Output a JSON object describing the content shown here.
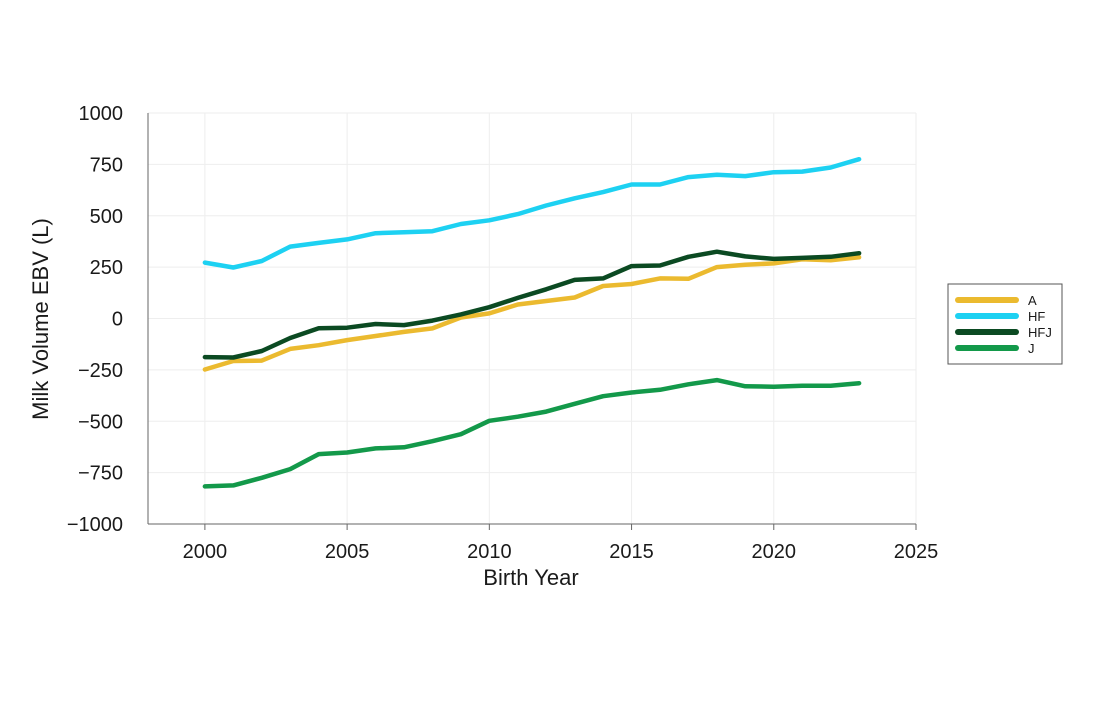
{
  "chart_data": {
    "type": "line",
    "title": "",
    "xlabel": "Birth Year",
    "ylabel": "Milk Volume EBV (L)",
    "xlim": [
      1998,
      2025
    ],
    "ylim": [
      -1000,
      1000
    ],
    "x_ticks": [
      2000,
      2005,
      2010,
      2015,
      2020,
      2025
    ],
    "x_tick_labels": [
      "2000",
      "2005",
      "2010",
      "2015",
      "2020",
      "2025"
    ],
    "y_ticks": [
      -1000,
      -750,
      -500,
      -250,
      0,
      250,
      500,
      750,
      1000
    ],
    "y_tick_labels": [
      "−1000",
      "−750",
      "−500",
      "−250",
      "0",
      "250",
      "500",
      "750",
      "1000"
    ],
    "grid": true,
    "legend_position": "right",
    "x": [
      2000,
      2001,
      2002,
      2003,
      2004,
      2005,
      2006,
      2007,
      2008,
      2009,
      2010,
      2011,
      2012,
      2013,
      2014,
      2015,
      2016,
      2017,
      2018,
      2019,
      2020,
      2021,
      2022,
      2023
    ],
    "series": [
      {
        "name": "A",
        "color": "#EBBA2F",
        "values": [
          -248,
          -207,
          -205,
          -148,
          -130,
          -105,
          -85,
          -65,
          -48,
          5,
          25,
          68,
          85,
          102,
          158,
          168,
          195,
          193,
          250,
          262,
          268,
          288,
          283,
          298
        ]
      },
      {
        "name": "HF",
        "color": "#1DD1F2",
        "values": [
          272,
          248,
          280,
          350,
          368,
          385,
          415,
          420,
          425,
          460,
          478,
          508,
          550,
          585,
          615,
          652,
          652,
          688,
          700,
          693,
          712,
          715,
          735,
          775
        ]
      },
      {
        "name": "HFJ",
        "color": "#0B4A22",
        "values": [
          -188,
          -190,
          -158,
          -95,
          -47,
          -45,
          -27,
          -32,
          -10,
          20,
          55,
          100,
          142,
          188,
          195,
          255,
          258,
          300,
          325,
          302,
          290,
          295,
          300,
          318
        ]
      },
      {
        "name": "J",
        "color": "#13994A",
        "values": [
          -817,
          -812,
          -775,
          -733,
          -660,
          -652,
          -632,
          -627,
          -597,
          -563,
          -498,
          -478,
          -453,
          -415,
          -378,
          -360,
          -347,
          -320,
          -300,
          -330,
          -332,
          -327,
          -327,
          -315
        ]
      }
    ]
  }
}
